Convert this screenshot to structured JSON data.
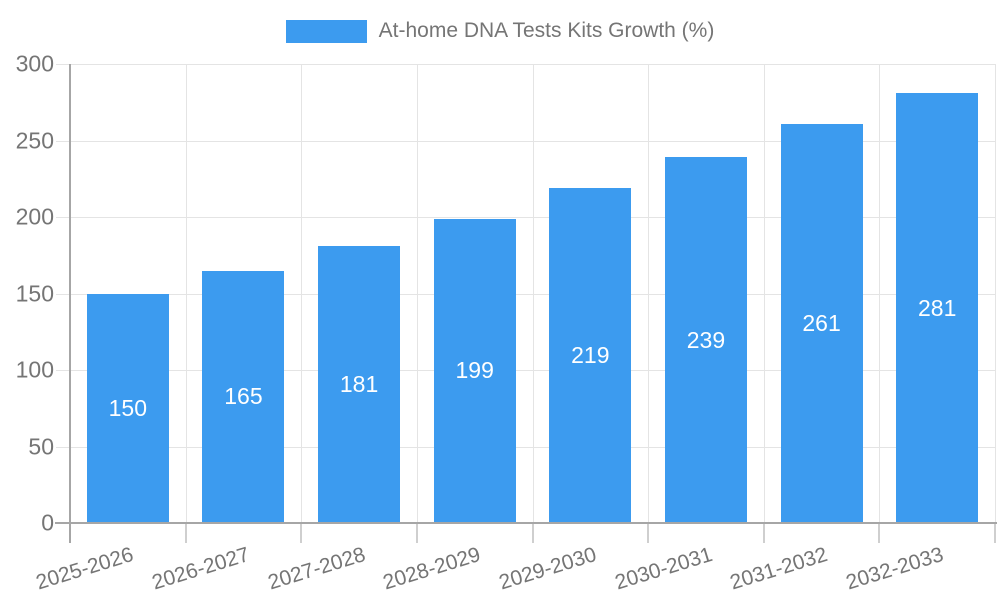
{
  "legend": {
    "label": "At-home DNA Tests Kits Growth (%)"
  },
  "chart_data": {
    "type": "bar",
    "title": "",
    "legend": "At-home DNA Tests Kits Growth (%)",
    "legend_position": "top-center",
    "categories": [
      "2025-2026",
      "2026-2027",
      "2027-2028",
      "2028-2029",
      "2029-2030",
      "2030-2031",
      "2031-2032",
      "2032-2033"
    ],
    "values": [
      150,
      165,
      181,
      199,
      219,
      239,
      261,
      281
    ],
    "xlabel": "",
    "ylabel": "",
    "ylim": [
      0,
      300
    ],
    "ytick_step": 50,
    "yticks": [
      0,
      50,
      100,
      150,
      200,
      250,
      300
    ],
    "grid": true,
    "value_labels": "inside-center",
    "x_label_rotation_deg": -17,
    "colors": {
      "bar": "#3C9BEF",
      "axis": "#A6A6A6",
      "grid": "#E4E4E4",
      "tick": "#CFCFCF",
      "text": "#757575",
      "value_text": "#FFFFFF"
    }
  }
}
